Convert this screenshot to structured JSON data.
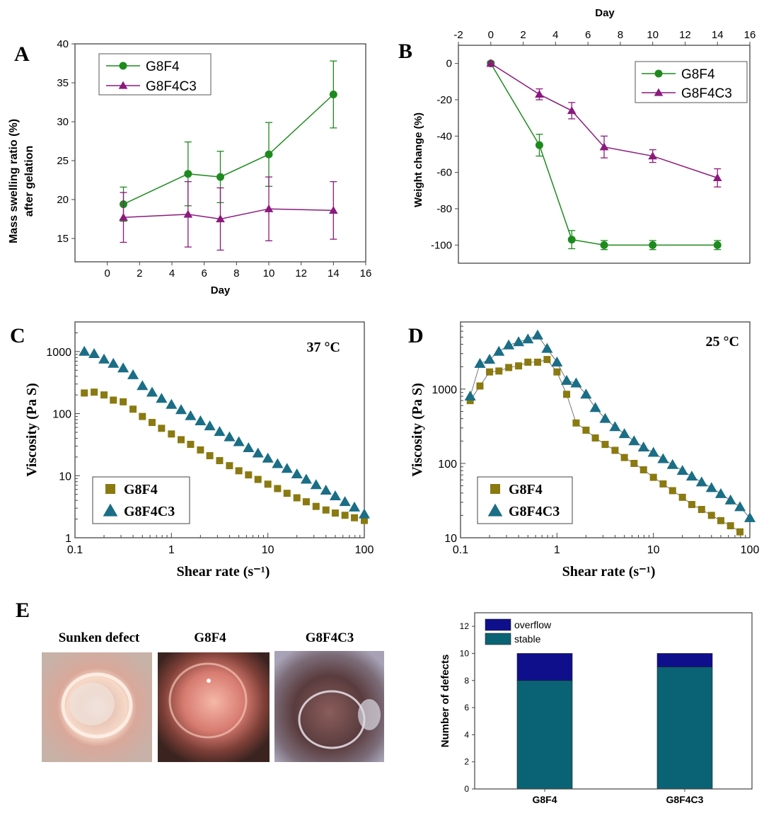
{
  "chart_data": [
    {
      "panel": "A",
      "type": "line",
      "xlabel": "Day",
      "ylabel_lines": [
        "Mass swelling ratio (%)",
        "after gelation"
      ],
      "xlim": [
        -2,
        16
      ],
      "ylim": [
        12,
        40
      ],
      "xticks": [
        0,
        2,
        4,
        6,
        8,
        10,
        12,
        14,
        16
      ],
      "yticks": [
        15,
        20,
        25,
        30,
        35,
        40
      ],
      "legend_position": "top-left",
      "series": [
        {
          "name": "G8F4",
          "color": "#1e8a1e",
          "marker": "circle",
          "x": [
            1,
            5,
            7,
            10,
            14
          ],
          "y": [
            19.4,
            23.3,
            22.9,
            25.8,
            33.5
          ],
          "err": [
            2.2,
            4.1,
            3.3,
            4.1,
            4.3
          ]
        },
        {
          "name": "G8F4C3",
          "color": "#8b1a7d",
          "marker": "triangle",
          "x": [
            1,
            5,
            7,
            10,
            14
          ],
          "y": [
            17.7,
            18.1,
            17.5,
            18.8,
            18.6
          ],
          "err": [
            3.2,
            4.2,
            4.0,
            4.1,
            3.7
          ]
        }
      ]
    },
    {
      "panel": "B",
      "type": "line",
      "xlabel": "Day",
      "xlabel_position": "top",
      "ylabel": "Weight change (%)",
      "xlim": [
        -2,
        16
      ],
      "ylim": [
        -110,
        10
      ],
      "xticks": [
        -2,
        0,
        2,
        4,
        6,
        8,
        10,
        12,
        14,
        16
      ],
      "yticks": [
        0,
        -20,
        -40,
        -60,
        -80,
        -100
      ],
      "legend_position": "top-right",
      "series": [
        {
          "name": "G8F4",
          "color": "#1e8a1e",
          "marker": "circle",
          "x": [
            0,
            3,
            5,
            7,
            10,
            14
          ],
          "y": [
            0,
            -45,
            -97,
            -100,
            -100,
            -100
          ],
          "err": [
            1,
            6,
            5,
            2.5,
            2.5,
            2.5
          ]
        },
        {
          "name": "G8F4C3",
          "color": "#8b1a7d",
          "marker": "triangle",
          "x": [
            0,
            3,
            5,
            7,
            10,
            14
          ],
          "y": [
            0,
            -17,
            -26,
            -46,
            -51,
            -63
          ],
          "err": [
            1,
            3,
            4.5,
            6,
            3.5,
            5
          ]
        }
      ]
    },
    {
      "panel": "C",
      "type": "scatter",
      "annotation": "37 °C",
      "xlabel": "Shear rate (s⁻¹)",
      "ylabel": "Viscosity (Pa S)",
      "xscale": "log",
      "yscale": "log",
      "xlim": [
        0.1,
        100
      ],
      "ylim": [
        1,
        3000
      ],
      "xticks": [
        0.1,
        1,
        10,
        100
      ],
      "xticklabels": [
        "0.1",
        "1",
        "10",
        "100"
      ],
      "yticks": [
        1,
        10,
        100,
        1000
      ],
      "yticklabels": [
        "1",
        "10",
        "100",
        "1000"
      ],
      "legend_position": "bottom-left",
      "series": [
        {
          "name": "G8F4",
          "color": "#8a7a10",
          "marker": "square",
          "x": [
            0.125,
            0.158,
            0.2,
            0.25,
            0.316,
            0.4,
            0.5,
            0.63,
            0.79,
            1.0,
            1.26,
            1.58,
            2.0,
            2.5,
            3.16,
            4.0,
            5.0,
            6.3,
            7.9,
            10,
            12.6,
            15.8,
            20,
            25,
            31.6,
            40,
            50,
            63,
            79,
            100
          ],
          "y": [
            215,
            222,
            200,
            165,
            155,
            118,
            90,
            72,
            58,
            47,
            38,
            32,
            26,
            21,
            17.5,
            14.5,
            12,
            10.3,
            8.7,
            7.3,
            6.2,
            5.2,
            4.4,
            3.8,
            3.2,
            2.8,
            2.5,
            2.3,
            2.1,
            1.9
          ]
        },
        {
          "name": "G8F4C3",
          "color": "#1a6e85",
          "marker": "triangle",
          "x": [
            0.125,
            0.158,
            0.2,
            0.25,
            0.316,
            0.4,
            0.5,
            0.63,
            0.79,
            1.0,
            1.26,
            1.58,
            2.0,
            2.5,
            3.16,
            4.0,
            5.0,
            6.3,
            7.9,
            10,
            12.6,
            15.8,
            20,
            25,
            31.6,
            40,
            50,
            63,
            79,
            100
          ],
          "y": [
            1000,
            920,
            750,
            640,
            540,
            420,
            280,
            220,
            175,
            140,
            115,
            92,
            76,
            63,
            51,
            42,
            35,
            28,
            23,
            19,
            15.5,
            13,
            10.6,
            8.7,
            7.1,
            5.8,
            4.7,
            3.8,
            3.1,
            2.4
          ]
        }
      ]
    },
    {
      "panel": "D",
      "type": "scatter",
      "annotation": "25 °C",
      "xlabel": "Shear rate (s⁻¹)",
      "ylabel": "Viscosity (Pa S)",
      "xscale": "log",
      "yscale": "log",
      "xlim": [
        0.1,
        100
      ],
      "ylim": [
        10,
        8000
      ],
      "xticks": [
        0.1,
        1,
        10,
        100
      ],
      "xticklabels": [
        "0.1",
        "1",
        "10",
        "100"
      ],
      "yticks": [
        10,
        100,
        1000
      ],
      "yticklabels": [
        "10",
        "100",
        "1000"
      ],
      "legend_position": "bottom-left",
      "series": [
        {
          "name": "G8F4",
          "color": "#8a7a10",
          "marker": "square",
          "x": [
            0.126,
            0.159,
            0.2,
            0.25,
            0.316,
            0.4,
            0.5,
            0.63,
            0.79,
            1.0,
            1.26,
            1.58,
            2.0,
            2.5,
            3.16,
            4.0,
            5.0,
            6.3,
            7.9,
            10,
            12.6,
            15.8,
            20,
            25,
            31.6,
            40,
            50,
            63,
            79
          ],
          "y": [
            700,
            1100,
            1700,
            1750,
            1950,
            2050,
            2300,
            2300,
            2500,
            1700,
            850,
            350,
            280,
            220,
            180,
            150,
            120,
            100,
            82,
            65,
            53,
            43,
            35,
            28,
            24,
            20,
            17,
            14.5,
            12
          ]
        },
        {
          "name": "G8F4C3",
          "color": "#1a6e85",
          "marker": "triangle",
          "x": [
            0.126,
            0.159,
            0.2,
            0.25,
            0.316,
            0.4,
            0.5,
            0.63,
            0.79,
            1.0,
            1.26,
            1.58,
            2.0,
            2.5,
            3.16,
            4.0,
            5.0,
            6.3,
            7.9,
            10,
            12.6,
            15.8,
            20,
            25,
            31.6,
            40,
            50,
            63,
            79,
            100
          ],
          "y": [
            800,
            2200,
            2500,
            3200,
            3900,
            4300,
            4700,
            5300,
            3500,
            2300,
            1300,
            1200,
            850,
            560,
            400,
            310,
            250,
            200,
            165,
            140,
            115,
            96,
            80,
            67,
            56,
            47,
            39,
            32,
            26,
            18.5
          ]
        }
      ]
    },
    {
      "panel": "E",
      "type": "bar",
      "stacked": true,
      "ylabel": "Number of defects",
      "categories": [
        "G8F4",
        "G8F4C3"
      ],
      "ylim": [
        0,
        13
      ],
      "yticks": [
        0,
        2,
        4,
        6,
        8,
        10,
        12
      ],
      "legend_position": "top-left",
      "series": [
        {
          "name": "stable",
          "color": "#0a6374",
          "values": [
            8,
            9
          ]
        },
        {
          "name": "overflow",
          "color": "#0f0f8c",
          "values": [
            2,
            1
          ]
        }
      ]
    }
  ],
  "panel_labels": [
    "A",
    "B",
    "C",
    "D",
    "E"
  ],
  "photos": [
    {
      "title": "Sunken defect"
    },
    {
      "title": "G8F4"
    },
    {
      "title": "G8F4C3"
    }
  ]
}
